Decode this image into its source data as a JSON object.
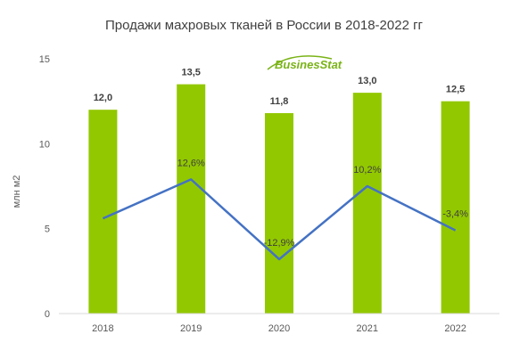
{
  "chart_data": {
    "type": "bar",
    "title": "Продажи махровых тканей в России в 2018-2022 гг",
    "ylabel": "млн м2",
    "categories": [
      "2018",
      "2019",
      "2020",
      "2021",
      "2022"
    ],
    "ylim": [
      0,
      15
    ],
    "yticks": [
      "0",
      "5",
      "10",
      "15"
    ],
    "values": [
      12.0,
      13.5,
      11.8,
      13.0,
      12.5
    ],
    "value_labels": [
      "12,0",
      "13,5",
      "11,8",
      "13,0",
      "12,5"
    ],
    "growth_line": {
      "type": "line",
      "values": [
        5.6,
        7.9,
        3.2,
        7.5,
        4.9
      ],
      "labels": [
        "",
        "12,6%",
        "-12,9%",
        "10,2%",
        "-3,4%"
      ]
    },
    "colors": {
      "bar": "#92c800",
      "line": "#4472c4"
    },
    "grid": false
  },
  "logo": {
    "text": "BusinesStat",
    "color": "#7ab317"
  }
}
